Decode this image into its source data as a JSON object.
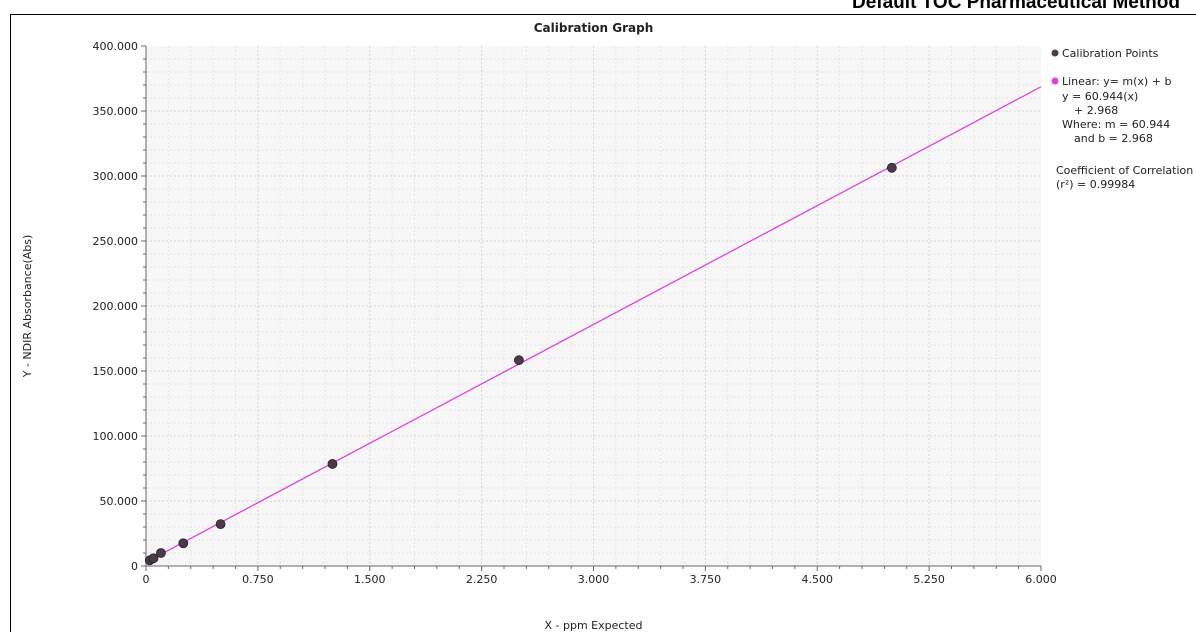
{
  "header": {
    "title": "Default TOC Pharmaceutical Method"
  },
  "chart_data": {
    "type": "scatter",
    "title": "Calibration Graph",
    "xlabel": "X - ppm Expected",
    "ylabel": "Y - NDIR Absorbance(Abs)",
    "xlim": [
      0,
      6
    ],
    "ylim": [
      0,
      400
    ],
    "x_ticks": [
      0,
      0.75,
      1.5,
      2.25,
      3,
      3.75,
      4.5,
      5.25,
      6
    ],
    "x_tick_labels": [
      "0",
      "0.750",
      "1.500",
      "2.250",
      "3.000",
      "3.750",
      "4.500",
      "5.250",
      "6.000"
    ],
    "y_ticks": [
      0,
      50,
      100,
      150,
      200,
      250,
      300,
      350,
      400
    ],
    "y_tick_labels": [
      "0",
      "50.000",
      "100.000",
      "150.000",
      "200.000",
      "250.000",
      "300.000",
      "350.000",
      "400.000"
    ],
    "grid": true,
    "legend_position": "right",
    "series": [
      {
        "name": "Calibration Points",
        "kind": "points",
        "color": "#4a3a4a",
        "x": [
          0.025,
          0.05,
          0.1,
          0.25,
          0.5,
          1.25,
          2.5,
          5.0
        ],
        "y": [
          4.4,
          5.9,
          10.0,
          17.5,
          32.2,
          78.5,
          158.3,
          306.3
        ]
      },
      {
        "name": "Linear:  y= m(x) + b",
        "kind": "line",
        "color": "#e040e0",
        "slope": 60.944,
        "intercept": 2.968,
        "x_range": [
          0,
          6
        ]
      }
    ],
    "legend": {
      "points_label": "Calibration Points",
      "line_label": "Linear:  y= m(x) + b",
      "eq_line1": "y = 60.944(x)",
      "eq_line2": "+ 2.968",
      "where_m": "Where:  m = 60.944",
      "and_b": "and    b = 2.968",
      "coef_label": "Coefficient of Correlation",
      "coef_value": "(r²) = 0.99984"
    }
  }
}
